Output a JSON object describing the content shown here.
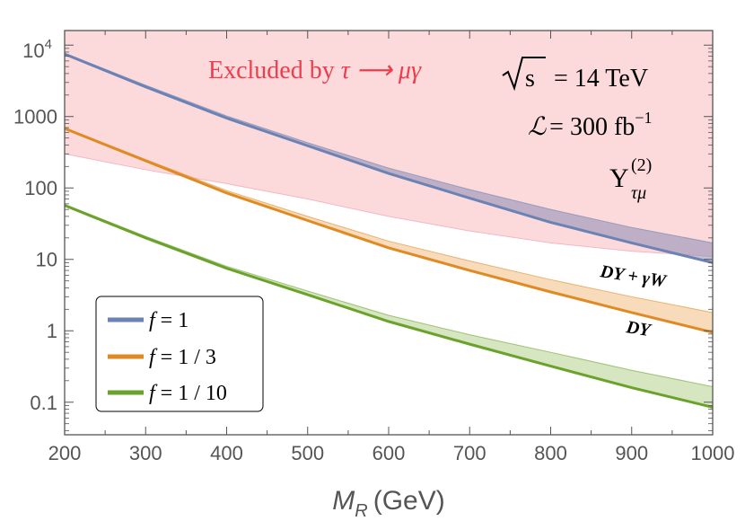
{
  "chart_data": {
    "type": "line",
    "x_axis": {
      "label_symbol": "M",
      "label_sub": "R",
      "label_unit": "(GeV)",
      "range": [
        200,
        1000
      ],
      "ticks": [
        200,
        300,
        400,
        500,
        600,
        700,
        800,
        900,
        1000
      ],
      "tick_labels": [
        "200",
        "300",
        "400",
        "500",
        "600",
        "700",
        "800",
        "900",
        "1000"
      ]
    },
    "y_axis": {
      "scale": "log",
      "range": [
        0.035,
        16000
      ],
      "ticks": [
        0.1,
        1,
        10,
        100,
        1000
      ],
      "tick_labels": [
        "0.1",
        "1",
        "10",
        "100",
        "1000"
      ],
      "top_tick_value": 10000,
      "top_tick_base": "10",
      "top_tick_exp": "4"
    },
    "excluded_region": {
      "label_prefix": "Excluded by ",
      "label_process": "τ ⟶ μγ",
      "color": "#f03c4b",
      "lower_boundary": {
        "x": [
          200,
          300,
          400,
          500,
          600,
          700,
          800,
          900,
          1000
        ],
        "y": [
          300,
          180,
          115,
          70,
          40,
          25,
          17,
          13,
          11
        ]
      }
    },
    "annotations": {
      "sqrt_s": "s",
      "energy": "= 14 TeV",
      "lumi_symbol": "ℒ",
      "lumi_value": "= 300 fb",
      "lumi_exp": "−1",
      "coupling_symbol": "Y",
      "coupling_sup": "(2)",
      "coupling_sub": "τμ",
      "band_upper_label": "DY + γW",
      "band_lower_label": "DY"
    },
    "series": [
      {
        "name": "f = 1",
        "legend_f": "f",
        "legend_value": "= 1",
        "color": "#6a82b4",
        "fill": "#8c8cb4",
        "x": [
          200,
          300,
          400,
          500,
          600,
          700,
          800,
          900,
          1000
        ],
        "dy": [
          7500,
          2600,
          950,
          390,
          160,
          72,
          33,
          17,
          9
        ],
        "dy_plus_gw": [
          7700,
          2750,
          1020,
          430,
          190,
          95,
          50,
          28,
          17
        ]
      },
      {
        "name": "f = 1/3",
        "legend_f": "f",
        "legend_value": "= 1 / 3",
        "color": "#e08a24",
        "fill": "#f0be82",
        "x": [
          200,
          300,
          400,
          500,
          600,
          700,
          800,
          900,
          1000
        ],
        "dy": [
          680,
          240,
          85,
          35,
          14.5,
          7,
          3.5,
          1.8,
          0.95
        ],
        "dy_plus_gw": [
          700,
          250,
          92,
          40,
          18,
          9.5,
          5.2,
          3.0,
          1.8
        ]
      },
      {
        "name": "f = 1/10",
        "legend_f": "f",
        "legend_value": "= 1 / 10",
        "color": "#6aa22b",
        "fill": "#b4d28c",
        "x": [
          200,
          300,
          400,
          500,
          600,
          700,
          800,
          900,
          1000
        ],
        "dy": [
          57,
          20,
          7.5,
          3.2,
          1.35,
          0.65,
          0.32,
          0.16,
          0.085
        ],
        "dy_plus_gw": [
          59,
          21,
          8,
          3.6,
          1.65,
          0.88,
          0.5,
          0.28,
          0.165
        ]
      }
    ]
  }
}
